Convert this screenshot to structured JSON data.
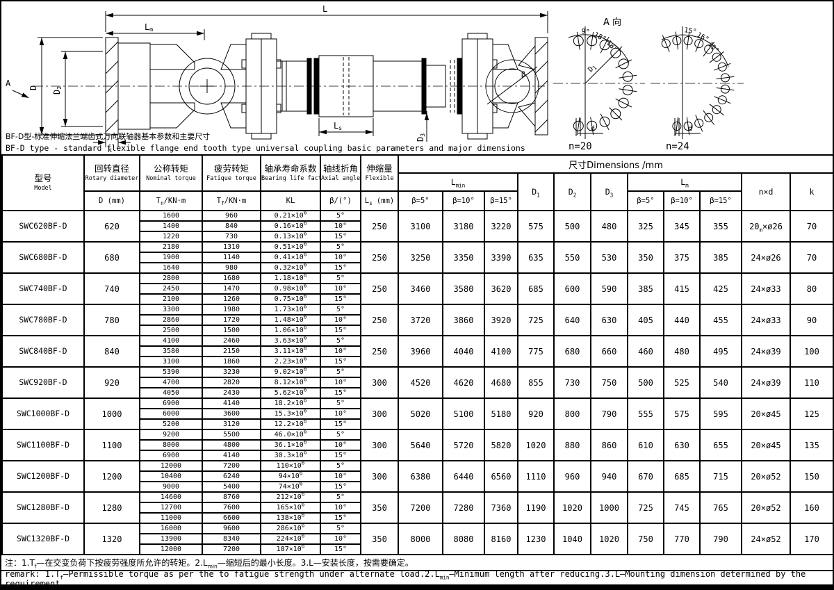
{
  "captions": {
    "zh": "BF-D型-标准伸缩法兰端齿式万向联轴器基本参数和主要尺寸",
    "en": "BF-D type - standard flexible flange end tooth type universal coupling basic parameters and major dimensions"
  },
  "drawing": {
    "view_label": "A 向",
    "dims": {
      "L": "L",
      "Lm_base": "L",
      "Lm_sub": "m",
      "Ls_base": "L",
      "Ls_sub": "s",
      "D": "D",
      "D2_base": "D",
      "D2_sub": "2",
      "D3_base": "D",
      "D3_sub": "3",
      "k": "k",
      "beta": "β",
      "A": "A"
    },
    "pattern_n20": {
      "angle1": "9°",
      "angle2": "18°",
      "angle3": "18°",
      "radius_base": "D",
      "radius_sub": "1",
      "hole": "d",
      "count": "n=20"
    },
    "pattern_n24": {
      "angle1": "15°",
      "angle2": "15°",
      "ang3_note": "",
      "angle3": "15°",
      "hole": "d",
      "count": "n=24"
    }
  },
  "table": {
    "headers": {
      "model_zh": "型号",
      "model_en": "Model",
      "rotary_zh": "回转直径",
      "rotary_en": "Rotary diameter",
      "rotary_unit": "D (mm)",
      "nominal_zh": "公称转矩",
      "nominal_en": "Nominal torque",
      "nominal_unit": "T_n_/KN·m",
      "fatigue_zh": "疲劳转矩",
      "fatigue_en": "Fatique torque",
      "fatigue_unit": "T_f_/KN·m",
      "bearing_zh": "轴承寿命系数",
      "bearing_en": "Bearing life factor",
      "bearing_unit": "KL",
      "axial_zh": "轴线折角",
      "axial_en": "Axial angle",
      "axial_unit": "β/(°)",
      "flexible_zh": "伸缩量",
      "flexible_en": "Flexible",
      "flexible_unit": "L_s_ (mm)",
      "dims_banner": "尺寸Dimensions /mm",
      "lmin": "L_min_",
      "lm": "L_m_",
      "beta5": "β=5°",
      "beta10": "β=10°",
      "beta15": "β=15°",
      "d1": "D_1_",
      "d2": "D_2_",
      "d3": "D_3_",
      "nd": "n×d",
      "k": "k"
    },
    "groups": [
      {
        "model": "SWC620BF-D",
        "d": "620",
        "rows": [
          [
            "1600",
            "960",
            "0.21×10^6^",
            "5°"
          ],
          [
            "1400",
            "840",
            "0.16×10^6^",
            "10°"
          ],
          [
            "1220",
            "730",
            "0.13×10^6^",
            "15°"
          ]
        ],
        "ls": "250",
        "lmin": [
          "3100",
          "3180",
          "3220"
        ],
        "d1": "575",
        "d2": "500",
        "d3": "480",
        "lm": [
          "325",
          "345",
          "355"
        ],
        "nd": "20_m_×ø26",
        "k": "70"
      },
      {
        "model": "SWC680BF-D",
        "d": "680",
        "rows": [
          [
            "2180",
            "1310",
            "0.51×10^6^",
            "5°"
          ],
          [
            "1900",
            "1140",
            "0.41×10^6^",
            "10°"
          ],
          [
            "1640",
            "980",
            "0.32×10^6^",
            "15°"
          ]
        ],
        "ls": "250",
        "lmin": [
          "3250",
          "3350",
          "3390"
        ],
        "d1": "635",
        "d2": "550",
        "d3": "530",
        "lm": [
          "350",
          "375",
          "385"
        ],
        "nd": "24×ø26",
        "k": "70"
      },
      {
        "model": "SWC740BF-D",
        "d": "740",
        "rows": [
          [
            "2800",
            "1680",
            "1.18×10^6^",
            "5°"
          ],
          [
            "2450",
            "1470",
            "0.98×10^6^",
            "10°"
          ],
          [
            "2100",
            "1260",
            "0.75×10^6^",
            "15°"
          ]
        ],
        "ls": "250",
        "lmin": [
          "3460",
          "3580",
          "3620"
        ],
        "d1": "685",
        "d2": "600",
        "d3": "590",
        "lm": [
          "385",
          "415",
          "425"
        ],
        "nd": "24×ø33",
        "k": "80"
      },
      {
        "model": "SWC780BF-D",
        "d": "780",
        "rows": [
          [
            "3300",
            "1980",
            "1.73×10^6^",
            "5°"
          ],
          [
            "2860",
            "1720",
            "1.48×10^6^",
            "10°"
          ],
          [
            "2500",
            "1500",
            "1.06×10^6^",
            "15°"
          ]
        ],
        "ls": "250",
        "lmin": [
          "3720",
          "3860",
          "3920"
        ],
        "d1": "725",
        "d2": "640",
        "d3": "630",
        "lm": [
          "405",
          "440",
          "455"
        ],
        "nd": "24×ø33",
        "k": "90"
      },
      {
        "model": "SWC840BF-D",
        "d": "840",
        "rows": [
          [
            "4100",
            "2460",
            "3.63×10^6^",
            "5°"
          ],
          [
            "3580",
            "2150",
            "3.11×10^6^",
            "10°"
          ],
          [
            "3100",
            "1860",
            "2.23×10^6^",
            "15°"
          ]
        ],
        "ls": "250",
        "lmin": [
          "3960",
          "4040",
          "4100"
        ],
        "d1": "775",
        "d2": "680",
        "d3": "660",
        "lm": [
          "460",
          "480",
          "495"
        ],
        "nd": "24×ø39",
        "k": "100"
      },
      {
        "model": "SWC920BF-D",
        "d": "920",
        "rows": [
          [
            "5390",
            "3230",
            "9.02×10^6^",
            "5°"
          ],
          [
            "4700",
            "2820",
            "8.12×10^6^",
            "10°"
          ],
          [
            "4050",
            "2430",
            "5.62×10^6^",
            "15°"
          ]
        ],
        "ls": "300",
        "lmin": [
          "4520",
          "4620",
          "4680"
        ],
        "d1": "855",
        "d2": "730",
        "d3": "750",
        "lm": [
          "500",
          "525",
          "540"
        ],
        "nd": "24×ø39",
        "k": "110"
      },
      {
        "model": "SWC1000BF-D",
        "d": "1000",
        "rows": [
          [
            "6900",
            "4140",
            "18.2×10^6^",
            "5°"
          ],
          [
            "6000",
            "3600",
            "15.3×10^6^",
            "10°"
          ],
          [
            "5200",
            "3120",
            "12.2×10^6^",
            "15°"
          ]
        ],
        "ls": "300",
        "lmin": [
          "5020",
          "5100",
          "5180"
        ],
        "d1": "920",
        "d2": "800",
        "d3": "790",
        "lm": [
          "555",
          "575",
          "595"
        ],
        "nd": "20×ø45",
        "k": "125"
      },
      {
        "model": "SWC1100BF-D",
        "d": "1100",
        "rows": [
          [
            "9200",
            "5500",
            "46.0×10^6^",
            "5°"
          ],
          [
            "8000",
            "4800",
            "36.1×10^6^",
            "10°"
          ],
          [
            "6900",
            "4140",
            "30.3×10^6^",
            "15°"
          ]
        ],
        "ls": "300",
        "lmin": [
          "5640",
          "5720",
          "5820"
        ],
        "d1": "1020",
        "d2": "880",
        "d3": "860",
        "lm": [
          "610",
          "630",
          "655"
        ],
        "nd": "20×ø45",
        "k": "135"
      },
      {
        "model": "SWC1200BF-D",
        "d": "1200",
        "rows": [
          [
            "12000",
            "7200",
            "110×10^6^",
            "5°"
          ],
          [
            "10400",
            "6240",
            "94×10^6^",
            "10°"
          ],
          [
            "9000",
            "5400",
            "74×10^6^",
            "15°"
          ]
        ],
        "ls": "300",
        "lmin": [
          "6380",
          "6440",
          "6560"
        ],
        "d1": "1110",
        "d2": "960",
        "d3": "940",
        "lm": [
          "670",
          "685",
          "715"
        ],
        "nd": "20×ø52",
        "k": "150"
      },
      {
        "model": "SWC1280BF-D",
        "d": "1280",
        "rows": [
          [
            "14600",
            "8760",
            "212×10^6^",
            "5°"
          ],
          [
            "12700",
            "7600",
            "165×10^6^",
            "10°"
          ],
          [
            "11000",
            "6600",
            "138×10^6^",
            "15°"
          ]
        ],
        "ls": "350",
        "lmin": [
          "7200",
          "7280",
          "7360"
        ],
        "d1": "1190",
        "d2": "1020",
        "d3": "1000",
        "lm": [
          "725",
          "745",
          "765"
        ],
        "nd": "20×ø52",
        "k": "160"
      },
      {
        "model": "SWC1320BF-D",
        "d": "1320",
        "rows": [
          [
            "16000",
            "9600",
            "286×10^6^",
            "5°"
          ],
          [
            "13900",
            "8340",
            "224×10^6^",
            "10°"
          ],
          [
            "12000",
            "7200",
            "187×10^6^",
            "15°"
          ]
        ],
        "ls": "350",
        "lmin": [
          "8000",
          "8080",
          "8160"
        ],
        "d1": "1230",
        "d2": "1040",
        "d3": "1020",
        "lm": [
          "750",
          "770",
          "790"
        ],
        "nd": "24×ø52",
        "k": "170"
      }
    ]
  },
  "notes": {
    "zh": "注：1.T_f_—在交变负荷下按疲劳强度所允许的转矩。2.L_min_—缩短后的最小长度。3.L—安装长度，按需要确定。",
    "en": "remark: 1.T_f_—Permissible torque as per the to fatigue strength under alternate load.2.L_min_—Minimum length after reducing.3.L—Mounting dimension determined by the requirement."
  }
}
